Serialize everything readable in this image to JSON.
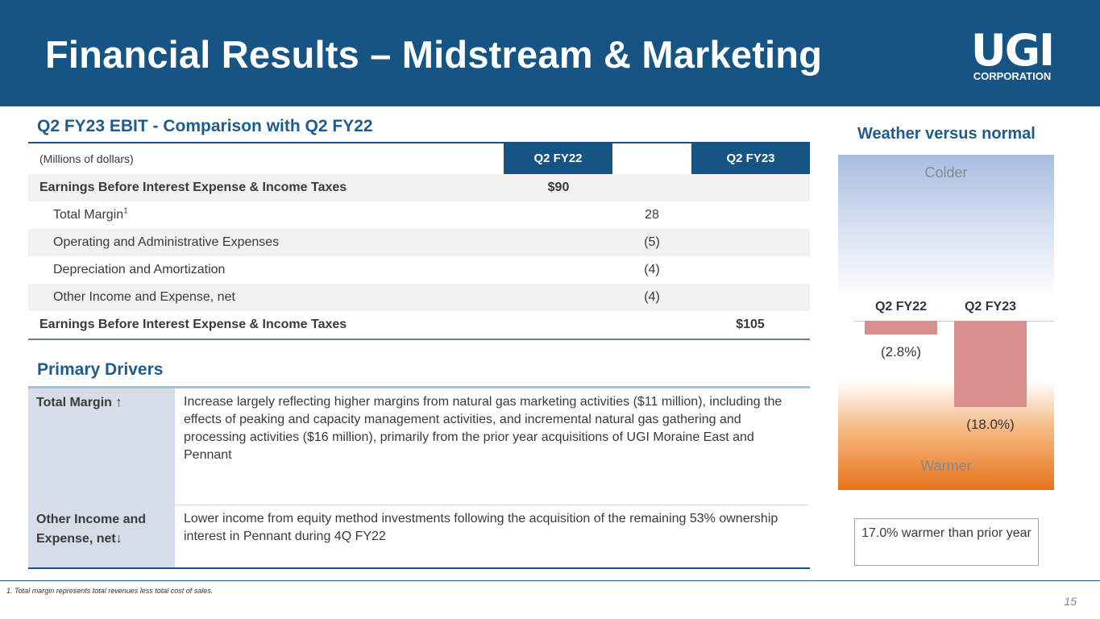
{
  "header": {
    "title": "Financial Results – Midstream & Marketing",
    "logo_main": "UGI",
    "logo_sub": "CORPORATION"
  },
  "ebit_section": {
    "title": "Q2 FY23 EBIT - Comparison with Q2 FY22",
    "unit_label": "(Millions of dollars)",
    "col_q22": "Q2 FY22",
    "col_q23": "Q2 FY23",
    "rows": [
      {
        "label": "Earnings Before Interest Expense & Income Taxes",
        "q22": "$90",
        "change": "",
        "q23": ""
      },
      {
        "label": "Total Margin",
        "sup": "1",
        "q22": "",
        "change": "28",
        "q23": ""
      },
      {
        "label": "Operating and Administrative Expenses",
        "q22": "",
        "change": "(5)",
        "q23": ""
      },
      {
        "label": "Depreciation and Amortization",
        "q22": "",
        "change": "(4)",
        "q23": ""
      },
      {
        "label": "Other Income and Expense, net",
        "q22": "",
        "change": "(4)",
        "q23": ""
      },
      {
        "label": "Earnings Before Interest Expense & Income Taxes",
        "q22": "",
        "change": "",
        "q23": "$105"
      }
    ]
  },
  "drivers_section": {
    "title": "Primary Drivers",
    "rows": [
      {
        "key": "Total Margin ↑",
        "value": "Increase largely reflecting higher margins from natural gas marketing activities ($11 million), including the effects of peaking and capacity management activities, and incremental natural gas gathering and processing activities ($16 million), primarily from the prior year acquisitions of UGI Moraine East and Pennant"
      },
      {
        "key": "Other Income and Expense, net↓",
        "value": "Lower income from equity method investments following the acquisition of the remaining 53% ownership interest in Pennant during 4Q FY22"
      }
    ]
  },
  "weather": {
    "title": "Weather versus normal",
    "colder_label": "Colder",
    "warmer_label": "Warmer",
    "note": "17.0% warmer than prior year"
  },
  "chart_data": {
    "type": "bar",
    "title": "Weather versus normal",
    "categories": [
      "Q2 FY22",
      "Q2 FY23"
    ],
    "values": [
      -2.8,
      -18.0
    ],
    "value_labels": [
      "(2.8%)",
      "(18.0%)"
    ],
    "ylim": [
      -20,
      0
    ],
    "colors": {
      "bar": "#d98f8c",
      "cold": "#a8bde0",
      "warm": "#e8741c"
    }
  },
  "footer": {
    "footnote": "1. Total margin represents total revenues less total cost of sales.",
    "page_number": "15"
  }
}
